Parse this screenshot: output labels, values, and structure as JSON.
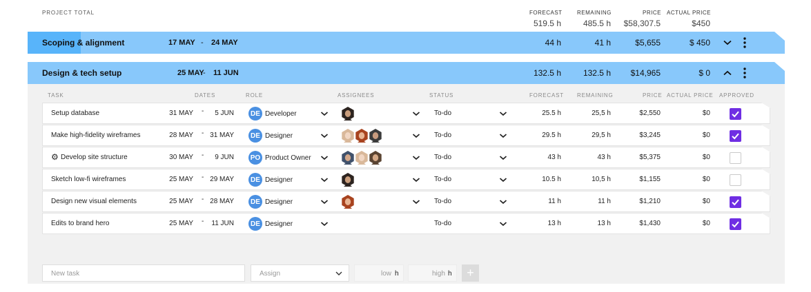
{
  "project_total": {
    "label": "PROJECT TOTAL",
    "headers": {
      "forecast": "FORECAST",
      "remaining": "REMAINING",
      "price": "PRICE",
      "actual_price": "ACTUAL PRICE"
    },
    "values": {
      "forecast": "519.5 h",
      "remaining": "485.5 h",
      "price": "$58,307.5",
      "actual_price": "$450"
    }
  },
  "phases": [
    {
      "name": "Scoping & alignment",
      "start": "17 MAY",
      "dash": "-",
      "end": "24 MAY",
      "forecast": "44 h",
      "remaining": "41 h",
      "price": "$5,655",
      "actual_price": "$ 450",
      "toggle": "collapsed"
    },
    {
      "name": "Design & tech setup",
      "start": "25 MAY",
      "dash": "-",
      "end": "11 JUN",
      "forecast": "132.5 h",
      "remaining": "132.5 h",
      "price": "$14,965",
      "actual_price": "$ 0",
      "toggle": "expanded"
    }
  ],
  "table_headers": {
    "task": "TASK",
    "dates": "DATES",
    "role": "ROLE",
    "assignees": "ASSIGNEES",
    "status": "STATUS",
    "forecast": "FORECAST",
    "remaining": "REMAINING",
    "price": "PRICE",
    "actual_price": "ACTUAL PRICE",
    "approved": "APPROVED"
  },
  "tasks": [
    {
      "name": "Setup database",
      "icon": "",
      "start": "31 MAY",
      "dash": "-",
      "end": "5 JUN",
      "role_initials": "DE",
      "role": "Developer",
      "assignees": [
        "man-dark-hair"
      ],
      "status": "To-do",
      "forecast": "25.5 h",
      "remaining": "25,5 h",
      "price": "$2,550",
      "actual_price": "$0",
      "approved": true
    },
    {
      "name": "Make high-fidelity wireframes",
      "icon": "",
      "start": "28 MAY",
      "dash": "-",
      "end": "31 MAY",
      "role_initials": "DE",
      "role": "Designer",
      "assignees": [
        "woman-blonde",
        "woman-red-hair",
        "man-grey-shirt"
      ],
      "status": "To-do",
      "forecast": "29.5 h",
      "remaining": "29,5 h",
      "price": "$3,245",
      "actual_price": "$0",
      "approved": true
    },
    {
      "name": "Develop site structure",
      "icon": "gear-icon",
      "start": "30 MAY",
      "dash": "-",
      "end": "9 JUN",
      "role_initials": "PO",
      "role": "Product Owner",
      "assignees": [
        "man-blue-shirt",
        "woman-blonde",
        "man-beard"
      ],
      "status": "To-do",
      "forecast": "43 h",
      "remaining": "43 h",
      "price": "$5,375",
      "actual_price": "$0",
      "approved": false
    },
    {
      "name": "Sketch low-fi wireframes",
      "icon": "",
      "start": "25 MAY",
      "dash": "-",
      "end": "29 MAY",
      "role_initials": "DE",
      "role": "Designer",
      "assignees": [
        "man-dark-hair"
      ],
      "status": "To-do",
      "forecast": "10.5 h",
      "remaining": "10,5 h",
      "price": "$1,155",
      "actual_price": "$0",
      "approved": false
    },
    {
      "name": "Design new visual elements",
      "icon": "",
      "start": "25 MAY",
      "dash": "-",
      "end": "28 MAY",
      "role_initials": "DE",
      "role": "Designer",
      "assignees": [
        "woman-red-hair"
      ],
      "status": "To-do",
      "forecast": "11 h",
      "remaining": "11 h",
      "price": "$1,210",
      "actual_price": "$0",
      "approved": true
    },
    {
      "name": "Edits to brand hero",
      "icon": "",
      "start": "25 MAY",
      "dash": "-",
      "end": "11 JUN",
      "role_initials": "DE",
      "role": "Designer",
      "assignees": [],
      "status": "To-do",
      "forecast": "13 h",
      "remaining": "13 h",
      "price": "$1,430",
      "actual_price": "$0",
      "approved": true
    }
  ],
  "new_task": {
    "placeholder": "New task",
    "assign": "Assign",
    "low": "low",
    "high": "high",
    "unit": "h",
    "add": "+"
  },
  "colors": {
    "phase_bg": "#88c8fb",
    "phase_accent": "#58b4fa",
    "role_badge": "#4a90e2",
    "approved": "#6f2ee3"
  }
}
